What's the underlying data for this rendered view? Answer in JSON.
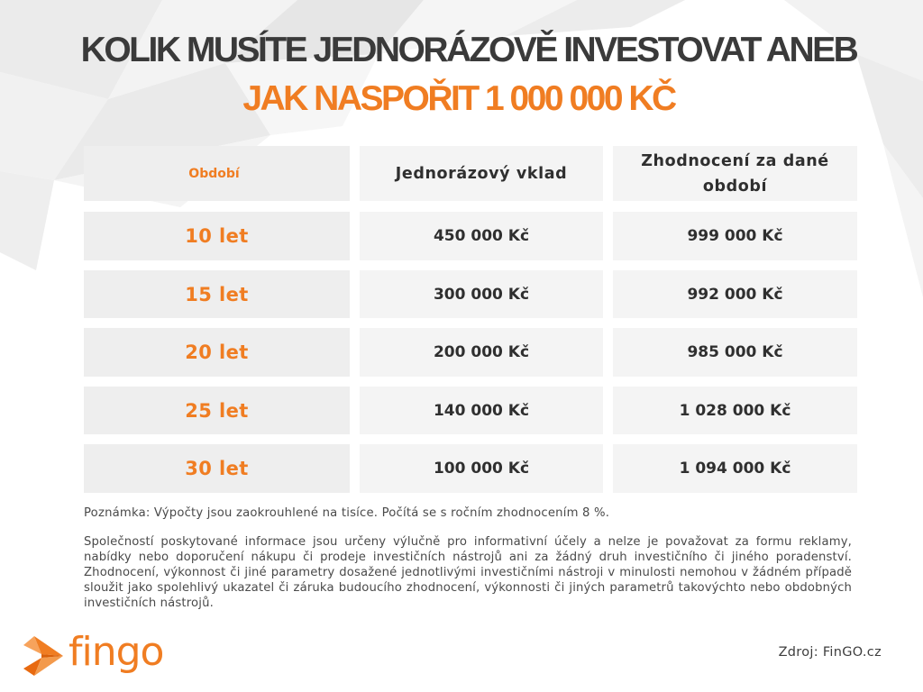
{
  "title": {
    "line1": "KOLIK MUSÍTE JEDNORÁZOVĚ INVESTOVAT ANEB",
    "line2": "JAK NASPOŘIT 1 000 000 KČ"
  },
  "chart_data": {
    "type": "table",
    "columns": [
      "Období",
      "Jednorázový vklad",
      "Zhodnocení za dané období"
    ],
    "rows": [
      [
        "10 let",
        "450 000 Kč",
        "999 000 Kč"
      ],
      [
        "15 let",
        "300 000 Kč",
        "992 000 Kč"
      ],
      [
        "20 let",
        "200 000 Kč",
        "985 000 Kč"
      ],
      [
        "25 let",
        "140 000 Kč",
        "1 028 000 Kč"
      ],
      [
        "30 let",
        "100 000 Kč",
        "1 094 000 Kč"
      ]
    ]
  },
  "note": "Poznámka: Výpočty jsou zaokrouhlené  na tisíce. Počítá se s ročním zhodnocením 8 %.",
  "disclaimer": "Společností poskytované informace jsou určeny výlučně pro informativní účely a nelze je považovat za formu reklamy, nabídky nebo doporučení nákupu či prodeje investičních nástrojů ani za žádný druh investičního či jiného poradenství. Zhodnocení, výkonnost či jiné parametry dosažené jednotlivými investičními nástroji v minulosti nemohou v žádném případě sloužit jako spolehlivý ukazatel či záruka budoucího zhodnocení, výkonnosti či jiných parametrů takovýchto nebo obdobných investičních nástrojů.",
  "logo": {
    "text": "fingo",
    "icon": "fish-logo-icon",
    "color": "#f07d22"
  },
  "source": "Zdroj: FinGO.cz",
  "colors": {
    "accent": "#f07d22",
    "title_dark": "#3a3a3a",
    "cell_bg": "#f4f4f4"
  }
}
